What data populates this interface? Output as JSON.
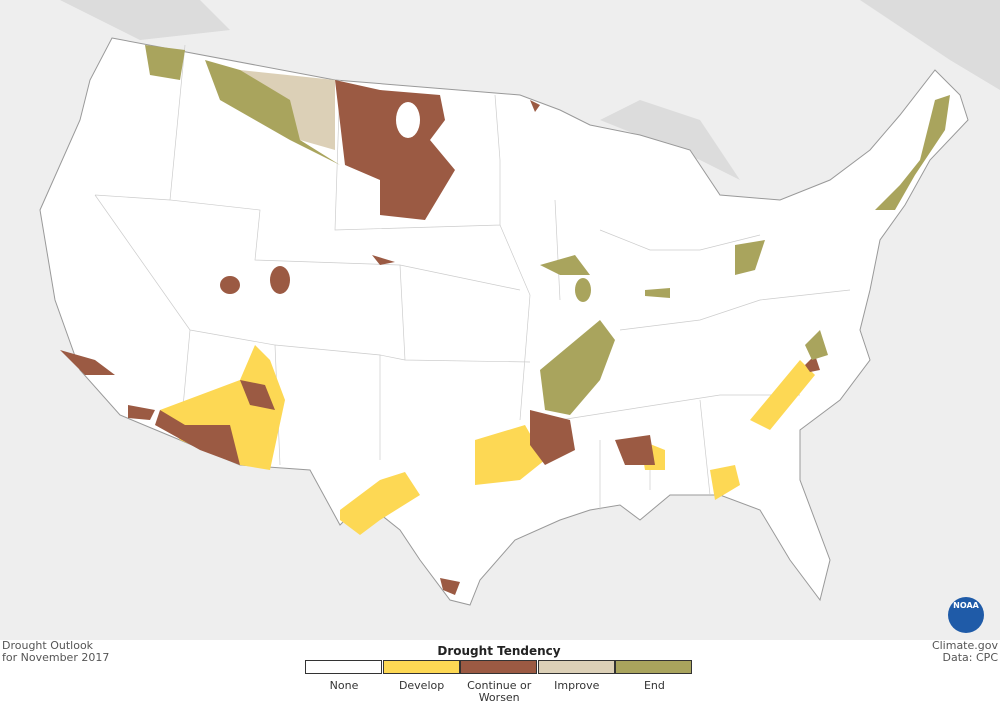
{
  "footer": {
    "title": "Drought Outlook",
    "subtitle": "for November 2017",
    "credit": "Climate.gov",
    "source": "Data: CPC"
  },
  "logo": "NOAA",
  "legend": {
    "title": "Drought Tendency",
    "items": [
      {
        "label": "None",
        "color": "#ffffff"
      },
      {
        "label": "Develop",
        "color": "#fdd854"
      },
      {
        "label": "Continue or Worsen",
        "color": "#9b5a43"
      },
      {
        "label": "Improve",
        "color": "#dcd0b7"
      },
      {
        "label": "End",
        "color": "#a9a45d"
      }
    ]
  }
}
